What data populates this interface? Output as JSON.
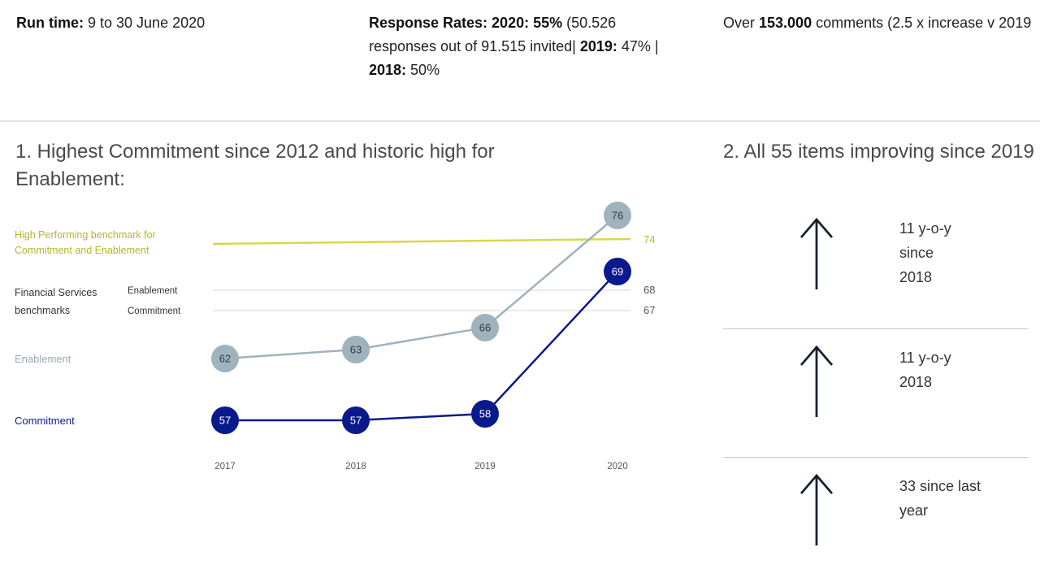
{
  "header": {
    "run_time_label": "Run time:",
    "run_time_value": " 9 to 30 June 2020",
    "response_label": "Response Rates: 2020: 55%",
    "response_text1": " (50.526 responses out of 91.515 invited| ",
    "response_2019_label": "2019:",
    "response_text2": " 47% | ",
    "response_2018_label": "2018:",
    "response_text3": " 50%",
    "comments_pre": "Over ",
    "comments_bold": "153.000",
    "comments_post": " comments (2.5 x increase v 2019"
  },
  "left_section": {
    "title": "1. Highest Commitment since 2012 and historic high for Enablement:"
  },
  "right_section": {
    "title": "2. All 55 items improving since 2019",
    "items": [
      {
        "text": "11 y-o-y since 2018"
      },
      {
        "text": "11 y-o-y 2018"
      },
      {
        "text": "33 since last year"
      }
    ]
  },
  "chart_data": {
    "type": "line",
    "categories": [
      "2017",
      "2018",
      "2019",
      "2020"
    ],
    "series": [
      {
        "name": "Enablement",
        "values": [
          62,
          63,
          66,
          76
        ],
        "color": "#9fb3bd"
      },
      {
        "name": "Commitment",
        "values": [
          57,
          57,
          58,
          69
        ],
        "color": "#0a1a8c"
      }
    ],
    "benchmarks": [
      {
        "label": "High Performing benchmark for Commitment and Enablement",
        "value": 74,
        "value_label": "74",
        "color": "#d7d84a"
      },
      {
        "group_label": "Financial Services benchmarks",
        "label": "Enablement",
        "value": 68,
        "value_label": "68",
        "color": "#e3e3e3"
      },
      {
        "group_label": "Financial Services benchmarks",
        "label": "Commitment",
        "value": 67,
        "value_label": "67",
        "color": "#e3e3e3"
      }
    ],
    "ylim": [
      56,
      77
    ]
  },
  "colors": {
    "enablement": "#9fb3bd",
    "commitment": "#0a1a8c",
    "benchmark": "#d7d84a",
    "arrow": "#152133"
  }
}
